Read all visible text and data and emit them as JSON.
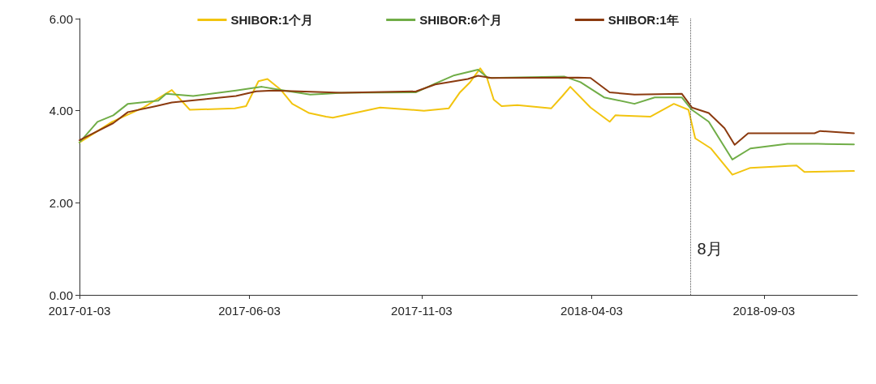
{
  "chart_data": {
    "type": "line",
    "xlim": [
      "2017-01-03",
      "2018-11-25"
    ],
    "xticks": [
      "2017-01-03",
      "2017-06-03",
      "2017-11-03",
      "2018-04-03",
      "2018-09-03"
    ],
    "ylim": [
      0,
      6
    ],
    "yticks": [
      {
        "value": 0,
        "label": "0.00"
      },
      {
        "value": 2,
        "label": "2.00"
      },
      {
        "value": 4,
        "label": "4.00"
      },
      {
        "value": 6,
        "label": "6.00"
      }
    ],
    "grid": false,
    "legend": "top",
    "marker": "none",
    "line_style": "solid",
    "series": [
      {
        "name": "SHIBOR:1个月",
        "color": "#f2c40f",
        "x": [
          "2017-01-03",
          "2017-02-01",
          "2017-03-01",
          "2017-03-26",
          "2017-04-11",
          "2017-05-21",
          "2017-05-31",
          "2017-06-11",
          "2017-06-19",
          "2017-07-01",
          "2017-07-11",
          "2017-07-26",
          "2017-08-10",
          "2017-08-16",
          "2017-09-27",
          "2017-11-05",
          "2017-11-27",
          "2017-12-07",
          "2017-12-16",
          "2017-12-25",
          "2017-12-31",
          "2018-01-06",
          "2018-01-13",
          "2018-01-27",
          "2018-02-26",
          "2018-03-08",
          "2018-03-15",
          "2018-04-02",
          "2018-04-19",
          "2018-04-24",
          "2018-05-25",
          "2018-06-15",
          "2018-06-28",
          "2018-07-04",
          "2018-07-18",
          "2018-08-06",
          "2018-08-22",
          "2018-10-02",
          "2018-10-09",
          "2018-11-22"
        ],
        "values": [
          3.31,
          3.76,
          4.07,
          4.45,
          4.02,
          4.05,
          4.1,
          4.64,
          4.69,
          4.45,
          4.15,
          3.95,
          3.87,
          3.85,
          4.07,
          4.0,
          4.05,
          4.4,
          4.62,
          4.92,
          4.71,
          4.24,
          4.1,
          4.12,
          4.05,
          4.32,
          4.52,
          4.07,
          3.76,
          3.9,
          3.87,
          4.15,
          4.02,
          3.4,
          3.18,
          2.61,
          2.76,
          2.81,
          2.67,
          2.69
        ]
      },
      {
        "name": "SHIBOR:6个月",
        "color": "#70ad47",
        "x": [
          "2017-01-03",
          "2017-01-19",
          "2017-02-02",
          "2017-02-15",
          "2017-03-14",
          "2017-03-21",
          "2017-04-14",
          "2017-05-22",
          "2017-06-14",
          "2017-07-04",
          "2017-07-27",
          "2017-08-10",
          "2017-08-24",
          "2017-10-29",
          "2017-11-15",
          "2017-12-02",
          "2017-12-23",
          "2018-01-01",
          "2018-03-10",
          "2018-03-24",
          "2018-04-14",
          "2018-05-11",
          "2018-05-29",
          "2018-06-22",
          "2018-07-01",
          "2018-07-16",
          "2018-08-06",
          "2018-08-22",
          "2018-09-24",
          "2018-10-21",
          "2018-11-22"
        ],
        "values": [
          3.31,
          3.76,
          3.9,
          4.15,
          4.22,
          4.37,
          4.32,
          4.44,
          4.52,
          4.44,
          4.35,
          4.37,
          4.39,
          4.4,
          4.59,
          4.77,
          4.89,
          4.71,
          4.74,
          4.62,
          4.29,
          4.15,
          4.29,
          4.29,
          4.02,
          3.76,
          2.94,
          3.18,
          3.28,
          3.28,
          3.27
        ]
      },
      {
        "name": "SHIBOR:1年",
        "color": "#8b3a0f",
        "x": [
          "2017-01-03",
          "2017-02-02",
          "2017-02-15",
          "2017-03-12",
          "2017-03-26",
          "2017-04-24",
          "2017-05-22",
          "2017-06-09",
          "2017-06-24",
          "2017-08-24",
          "2017-10-29",
          "2017-11-15",
          "2017-12-14",
          "2017-12-23",
          "2018-01-04",
          "2018-03-22",
          "2018-04-02",
          "2018-04-19",
          "2018-05-11",
          "2018-06-22",
          "2018-07-01",
          "2018-07-16",
          "2018-07-30",
          "2018-08-08",
          "2018-08-20",
          "2018-10-18",
          "2018-10-23",
          "2018-11-22"
        ],
        "values": [
          3.36,
          3.73,
          3.97,
          4.1,
          4.18,
          4.25,
          4.32,
          4.42,
          4.44,
          4.39,
          4.42,
          4.57,
          4.69,
          4.76,
          4.71,
          4.72,
          4.71,
          4.4,
          4.35,
          4.37,
          4.07,
          3.95,
          3.62,
          3.26,
          3.51,
          3.51,
          3.56,
          3.51
        ]
      }
    ],
    "ref_lines": [
      {
        "axis": "x",
        "value": "2018-06-30",
        "label": "8月",
        "color": "#555555",
        "line_style": "dotted"
      }
    ]
  }
}
